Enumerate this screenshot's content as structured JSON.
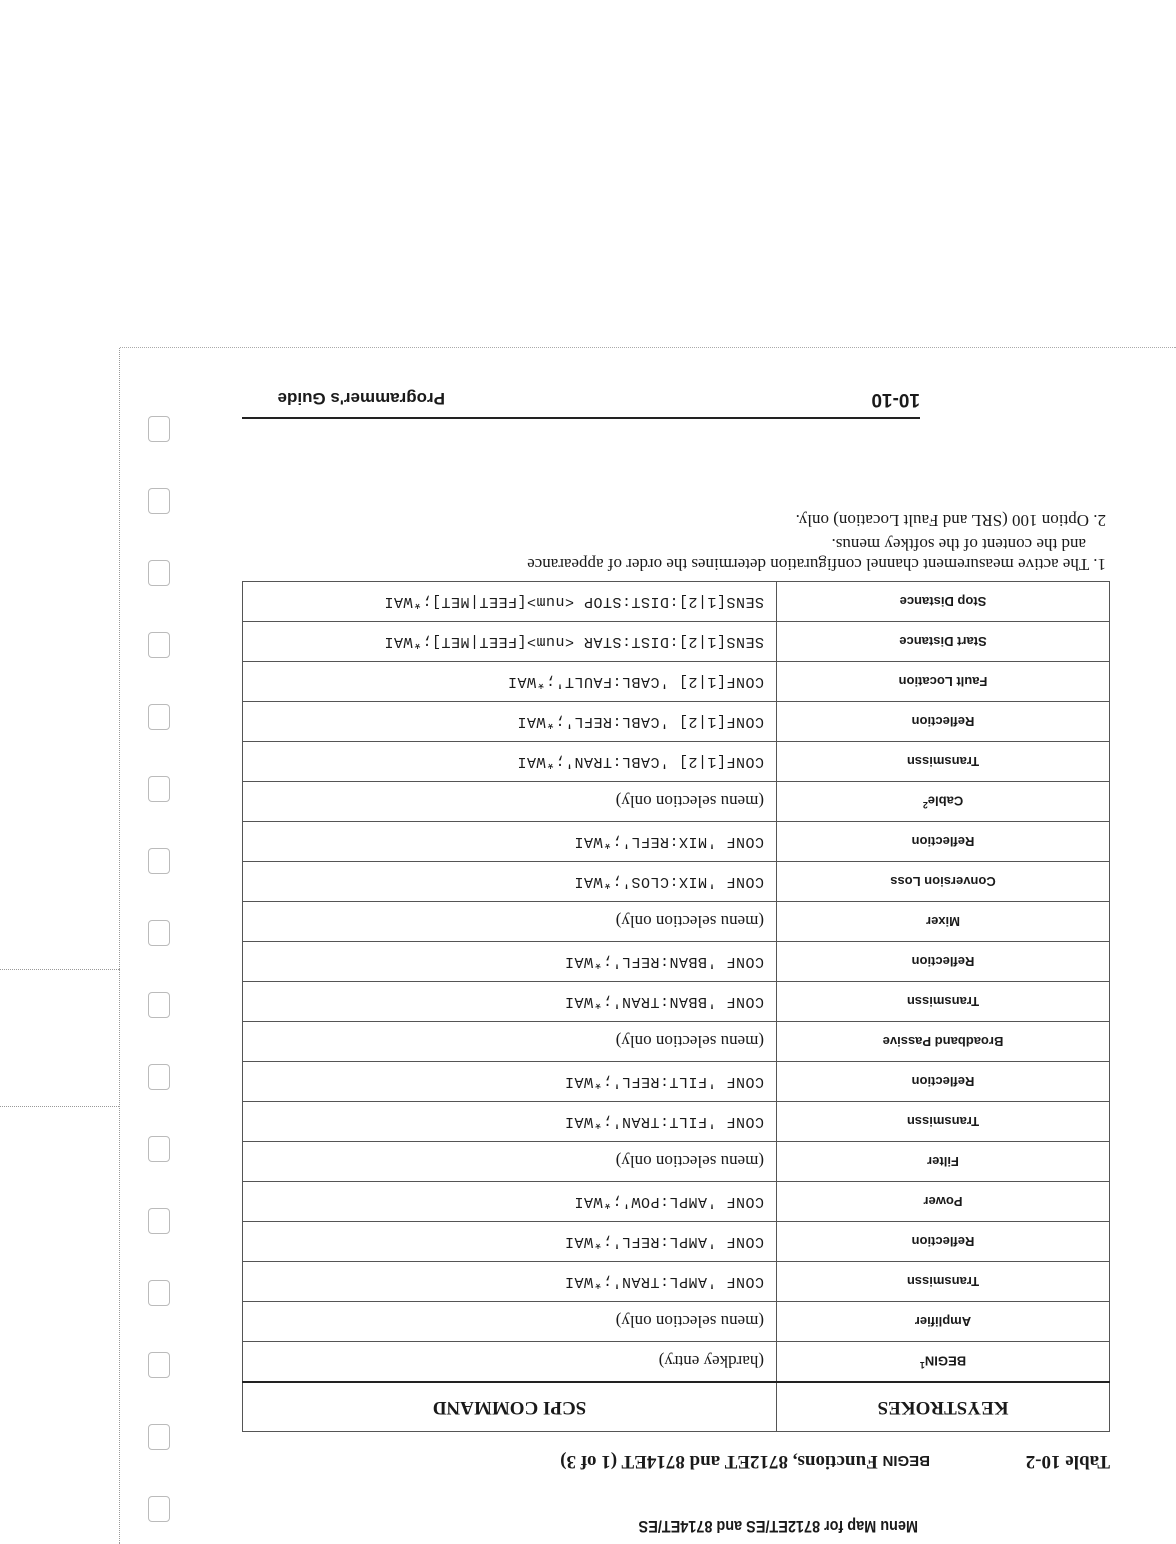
{
  "running_head": "Menu Map for 8712ET/ES and 8714ET/ES",
  "table": {
    "number": "Table 10-2",
    "title_prefix": "BEGIN",
    "title_rest": " Functions, 8712ET and 8714ET (1 of 3)",
    "headers": [
      "KEYSTROKES",
      "SCPI COMMAND"
    ],
    "rows": [
      {
        "key": "BEGIN",
        "sup": "1",
        "cmd": "(hardkey entry)"
      },
      {
        "key": "Amplifier",
        "cmd": "(menu selection only)"
      },
      {
        "key": "Transmissn",
        "cmd": "CONF 'AMPL:TRAN';*WAI"
      },
      {
        "key": "Reflection",
        "cmd": "CONF 'AMPL:REFL';*WAI"
      },
      {
        "key": "Power",
        "cmd": "CONF 'AMPL:POW';*WAI"
      },
      {
        "key": "Filter",
        "cmd": "(menu selection only)"
      },
      {
        "key": "Transmissn",
        "cmd": "CONF 'FILT:TRAN';*WAI"
      },
      {
        "key": "Reflection",
        "cmd": "CONF 'FILT:REFL';*WAI"
      },
      {
        "key": "Broadband Passive",
        "cmd": "(menu selection only)"
      },
      {
        "key": "Transmissn",
        "cmd": "CONF 'BBAN:TRAN';*WAI"
      },
      {
        "key": "Reflection",
        "cmd": "CONF 'BBAN:REFL';*WAI"
      },
      {
        "key": "Mixer",
        "cmd": "(menu selection only)"
      },
      {
        "key": "Conversion Loss",
        "cmd": "CONF 'MIX:CLOS';*WAI"
      },
      {
        "key": "Reflection",
        "cmd": "CONF 'MIX:REFL';*WAI"
      },
      {
        "key": "Cable",
        "sup": "2",
        "cmd": "(menu selection only)"
      },
      {
        "key": "Transmissn",
        "cmd": "CONF[1|2] 'CABL:TRAN';*WAI"
      },
      {
        "key": "Reflection",
        "cmd": "CONF[1|2] 'CABL:REFL';*WAI"
      },
      {
        "key": "Fault Location",
        "cmd": "CONF[1|2] 'CABL:FAULT';*WAI"
      },
      {
        "key": "Start Distance",
        "cmd": "SENS[1|2]:DIST:STAR <num>[FEET|MET];*WAI"
      },
      {
        "key": "Stop Distance",
        "cmd": "SENS[1|2]:DIST:STOP <num>[FEET|MET];*WAI"
      }
    ]
  },
  "footnotes": [
    {
      "line1": "1. The active measurement channel configuration determines the order of appearance",
      "line2": "and the content of the softkey menus."
    },
    {
      "line1": "2. Option 100 (SRL and Fault Location) only.",
      "line2": ""
    }
  ],
  "footer": {
    "page_number": "10-10",
    "guide": "Programmer's Guide"
  }
}
